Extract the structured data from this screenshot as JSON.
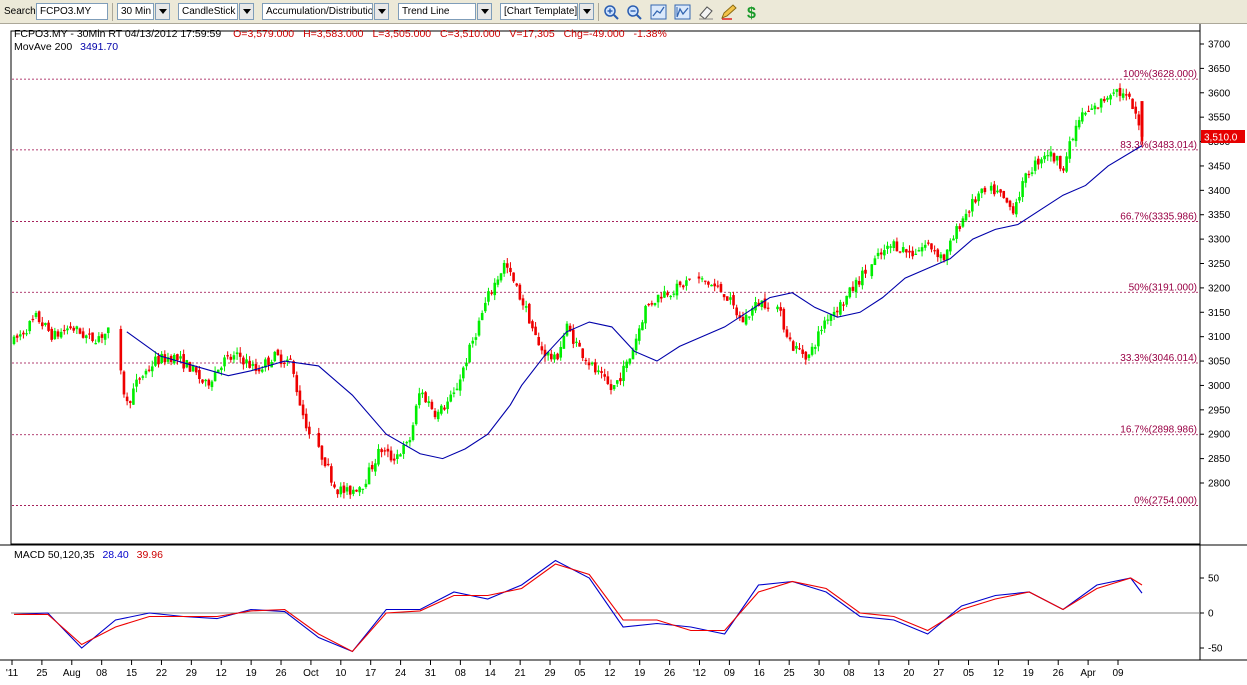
{
  "toolbar": {
    "search_label": "Search",
    "symbol_value": "FCPO3.MY",
    "interval": "30 Min",
    "chart_style": "CandleStick",
    "indicator": "Accumulation/Distributior",
    "drawing_tool": "Trend Line",
    "template": "[Chart Template]",
    "icons": [
      "zoom-in-icon",
      "zoom-out-icon",
      "chart-fit-icon",
      "chart-scale-icon",
      "eraser-icon",
      "pencil-icon",
      "dollar-icon"
    ]
  },
  "header": {
    "symbol_info": "FCPO3.MY - 30Min RT  04/13/2012  17:59:59",
    "open": "O=3,579.000",
    "high": "H=3,583.000",
    "low": "L=3,505.000",
    "close": "C=3,510.000",
    "volume": "V=17,305",
    "change": "Chg=-49.000",
    "change_pct": "-1.38%",
    "ma_label": "MovAve 200",
    "ma_value": "3491.70",
    "last_price": "3,510.0"
  },
  "macd_header": {
    "label": "MACD 50,120,35",
    "macd_value": "28.40",
    "signal_value": "39.96"
  },
  "colors": {
    "up": "#00ee00",
    "down": "#ee0000",
    "ma": "#0000aa",
    "fib": "#990044",
    "macd": "#0000cc",
    "signal": "#ee0000"
  },
  "chart_data": [
    {
      "type": "candlestick",
      "title": "FCPO3.MY - 30Min RT",
      "ylim": [
        2740,
        3720
      ],
      "y_ticks": [
        2800,
        2850,
        2900,
        2950,
        3000,
        3050,
        3100,
        3150,
        3200,
        3250,
        3300,
        3350,
        3400,
        3450,
        3500,
        3550,
        3600,
        3650,
        3700
      ],
      "x_ticks": [
        "'11",
        "25",
        "Aug",
        "08",
        "15",
        "22",
        "29",
        "12",
        "19",
        "26",
        "Oct",
        "10",
        "17",
        "24",
        "31",
        "08",
        "14",
        "21",
        "29",
        "05",
        "12",
        "19",
        "26",
        "'12",
        "09",
        "16",
        "25",
        "30",
        "08",
        "13",
        "20",
        "27",
        "05",
        "12",
        "19",
        "26",
        "Apr",
        "09"
      ],
      "close_path": {
        "x": [
          0,
          0.02,
          0.035,
          0.05,
          0.068,
          0.085,
          0.092,
          0.1,
          0.11,
          0.125,
          0.14,
          0.155,
          0.17,
          0.185,
          0.2,
          0.215,
          0.23,
          0.245,
          0.255,
          0.265,
          0.275,
          0.285,
          0.295,
          0.31,
          0.325,
          0.335,
          0.35,
          0.36,
          0.375,
          0.39,
          0.405,
          0.42,
          0.435,
          0.445,
          0.455,
          0.465,
          0.48,
          0.49,
          0.5,
          0.515,
          0.53,
          0.545,
          0.56,
          0.575,
          0.59,
          0.6,
          0.615,
          0.63,
          0.645,
          0.66,
          0.675,
          0.69,
          0.705,
          0.72,
          0.735,
          0.75,
          0.765,
          0.78,
          0.795,
          0.81,
          0.825,
          0.84,
          0.855,
          0.87,
          0.885,
          0.9,
          0.915,
          0.93,
          0.945,
          0.96,
          0.975,
          0.99,
          1.0
        ],
        "y": [
          3090,
          3140,
          3100,
          3120,
          3095,
          3110,
          3050,
          2960,
          3010,
          3050,
          3060,
          3040,
          3000,
          3050,
          3060,
          3030,
          3060,
          3050,
          2950,
          2880,
          2850,
          2790,
          2780,
          2800,
          2870,
          2850,
          2880,
          2990,
          2940,
          2980,
          3080,
          3180,
          3250,
          3200,
          3150,
          3080,
          3050,
          3120,
          3080,
          3030,
          2990,
          3050,
          3160,
          3190,
          3200,
          3220,
          3210,
          3190,
          3130,
          3170,
          3170,
          3080,
          3060,
          3140,
          3170,
          3220,
          3260,
          3290,
          3270,
          3290,
          3260,
          3340,
          3390,
          3400,
          3360,
          3440,
          3480,
          3450,
          3550,
          3570,
          3610,
          3580,
          3510
        ]
      },
      "moving_average": {
        "name": "MovAve 200",
        "x": [
          0.1,
          0.13,
          0.16,
          0.19,
          0.21,
          0.24,
          0.27,
          0.3,
          0.33,
          0.36,
          0.38,
          0.4,
          0.42,
          0.44,
          0.45,
          0.47,
          0.49,
          0.51,
          0.53,
          0.55,
          0.57,
          0.59,
          0.61,
          0.63,
          0.65,
          0.67,
          0.69,
          0.71,
          0.73,
          0.75,
          0.77,
          0.79,
          0.81,
          0.83,
          0.85,
          0.87,
          0.89,
          0.91,
          0.93,
          0.95,
          0.97,
          1.0
        ],
        "y": [
          3110,
          3060,
          3040,
          3020,
          3030,
          3050,
          3040,
          2980,
          2900,
          2860,
          2850,
          2870,
          2900,
          2960,
          3000,
          3060,
          3110,
          3130,
          3120,
          3070,
          3050,
          3080,
          3100,
          3120,
          3150,
          3180,
          3190,
          3160,
          3140,
          3150,
          3180,
          3220,
          3240,
          3260,
          3300,
          3320,
          3330,
          3360,
          3390,
          3410,
          3450,
          3491.7
        ]
      },
      "fibonacci_levels": [
        {
          "label": "100%(3628.000)",
          "value": 3628.0
        },
        {
          "label": "83.3%(3483.014)",
          "value": 3483.014
        },
        {
          "label": "66.7%(3335.986)",
          "value": 3335.986
        },
        {
          "label": "50%(3191.000)",
          "value": 3191.0
        },
        {
          "label": "33.3%(3046.014)",
          "value": 3046.014
        },
        {
          "label": "16.7%(2898.986)",
          "value": 2898.986
        },
        {
          "label": "0%(2754.000)",
          "value": 2754.0
        }
      ]
    },
    {
      "type": "line",
      "title": "MACD 50,120,35",
      "ylim": [
        -62,
        88
      ],
      "y_ticks": [
        50,
        0,
        -50
      ],
      "x": [
        0,
        0.03,
        0.06,
        0.09,
        0.12,
        0.15,
        0.18,
        0.21,
        0.24,
        0.27,
        0.3,
        0.33,
        0.36,
        0.39,
        0.42,
        0.45,
        0.48,
        0.51,
        0.54,
        0.57,
        0.6,
        0.63,
        0.66,
        0.69,
        0.72,
        0.75,
        0.78,
        0.81,
        0.84,
        0.87,
        0.9,
        0.93,
        0.96,
        0.99,
        1.0
      ],
      "series": [
        {
          "name": "MACD",
          "values": [
            -2,
            0,
            -50,
            -10,
            0,
            -5,
            -8,
            5,
            2,
            -35,
            -55,
            5,
            5,
            30,
            20,
            40,
            75,
            50,
            -20,
            -15,
            -20,
            -30,
            40,
            45,
            30,
            -5,
            -10,
            -30,
            10,
            25,
            30,
            5,
            40,
            50,
            28.4
          ]
        },
        {
          "name": "Signal",
          "values": [
            -2,
            -2,
            -45,
            -20,
            -5,
            -5,
            -5,
            3,
            5,
            -30,
            -55,
            0,
            3,
            25,
            25,
            35,
            70,
            55,
            -10,
            -10,
            -25,
            -25,
            30,
            45,
            35,
            0,
            -5,
            -25,
            5,
            20,
            30,
            5,
            35,
            50,
            39.96
          ]
        }
      ]
    }
  ]
}
